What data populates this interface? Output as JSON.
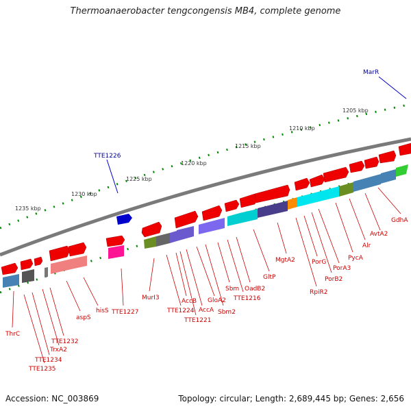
{
  "title": "Thermoanaerobacter tengcongensis MB4, complete genome",
  "footer": {
    "accession": "Accession: NC_003869",
    "summary": "Topology: circular; Length: 2,689,445 bp; Genes: 2,656"
  },
  "scale_labels": [
    "1235 kbp",
    "1230 kbp",
    "1225 kbp",
    "1220 kbp",
    "1215 kbp",
    "1210 kbp",
    "1205 kbp"
  ],
  "gene_labels_top": [
    "TTE1226",
    "MarR"
  ],
  "gene_labels_bottom": [
    "ThrC",
    "TTE1235",
    "TTE1234",
    "TrxA2",
    "TTE1232",
    "aspS",
    "hisS",
    "TTE1227",
    "MurI3",
    "TTE1224",
    "AccB",
    "TTE1221",
    "AccA",
    "GloA2",
    "Sbm2",
    "Sbm",
    "TTE1216",
    "OadB2",
    "GltP",
    "MgtA2",
    "RpiR2",
    "PorG",
    "PorB2",
    "PorA3",
    "PycA",
    "Alr",
    "AvtA2",
    "GdhA"
  ],
  "colors": {
    "forward_gene": "#ee0000",
    "reverse_gene": "#cc0000",
    "highlight_gene": "#0000cc",
    "scale_ticks": "#008800",
    "backbone": "#888888"
  }
}
